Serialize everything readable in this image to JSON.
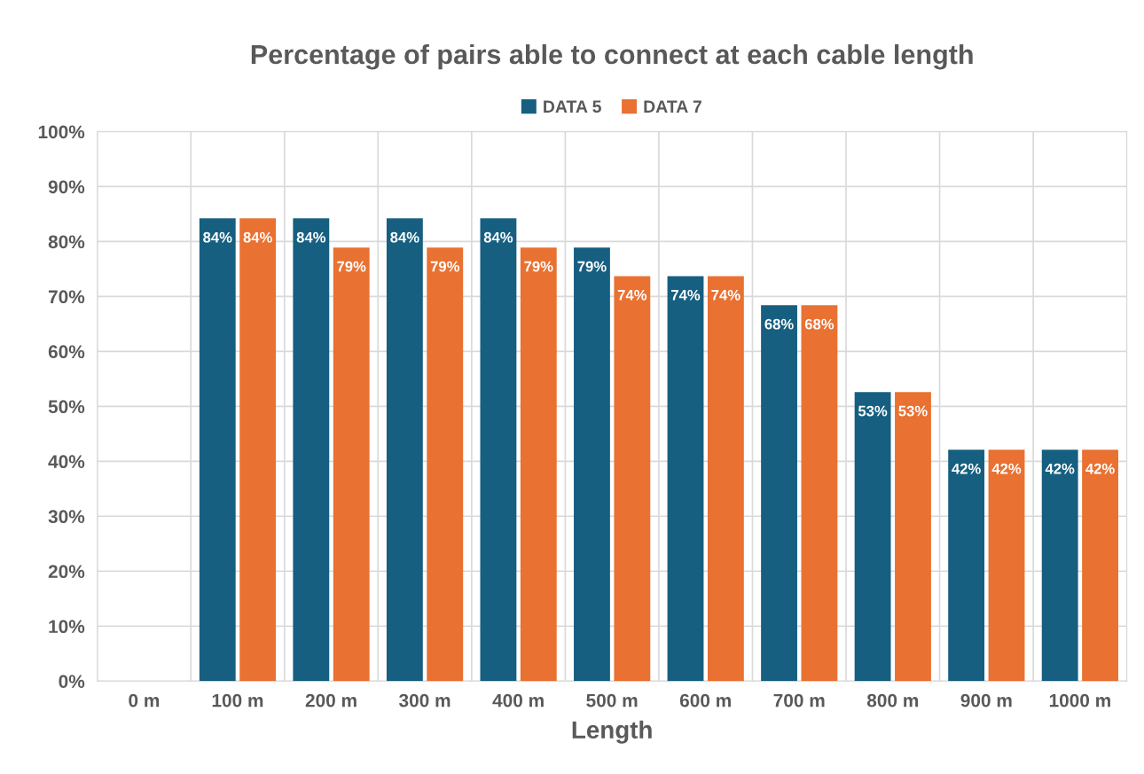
{
  "chart_data": {
    "type": "bar",
    "title": "Percentage of pairs able to connect at each cable length",
    "xlabel": "Length",
    "categories": [
      "0 m",
      "100 m",
      "200 m",
      "300 m",
      "400 m",
      "500 m",
      "600 m",
      "700 m",
      "800 m",
      "900 m",
      "1000 m"
    ],
    "series": [
      {
        "name": "DATA 5",
        "color": "#165f80",
        "values": [
          null,
          84.2,
          84.2,
          84.2,
          84.2,
          78.9,
          73.7,
          68.4,
          52.6,
          42.1,
          42.1
        ],
        "value_labels": [
          null,
          "84%",
          "84%",
          "84%",
          "84%",
          "79%",
          "74%",
          "68%",
          "53%",
          "42%",
          "42%"
        ]
      },
      {
        "name": "DATA 7",
        "color": "#e97132",
        "values": [
          null,
          84.2,
          78.9,
          78.9,
          78.9,
          73.7,
          73.7,
          68.4,
          52.6,
          42.1,
          42.1
        ],
        "value_labels": [
          null,
          "84%",
          "79%",
          "79%",
          "79%",
          "74%",
          "74%",
          "68%",
          "53%",
          "42%",
          "42%"
        ]
      }
    ],
    "ylim": [
      0,
      100
    ],
    "yticks": [
      {
        "value": 0,
        "label": "0%"
      },
      {
        "value": 10,
        "label": "10%"
      },
      {
        "value": 20,
        "label": "20%"
      },
      {
        "value": 30,
        "label": "30%"
      },
      {
        "value": 40,
        "label": "40%"
      },
      {
        "value": 50,
        "label": "50%"
      },
      {
        "value": 60,
        "label": "60%"
      },
      {
        "value": 70,
        "label": "70%"
      },
      {
        "value": 80,
        "label": "80%"
      },
      {
        "value": 90,
        "label": "90%"
      },
      {
        "value": 100,
        "label": "100%"
      }
    ],
    "grid": true,
    "legend": "top"
  }
}
